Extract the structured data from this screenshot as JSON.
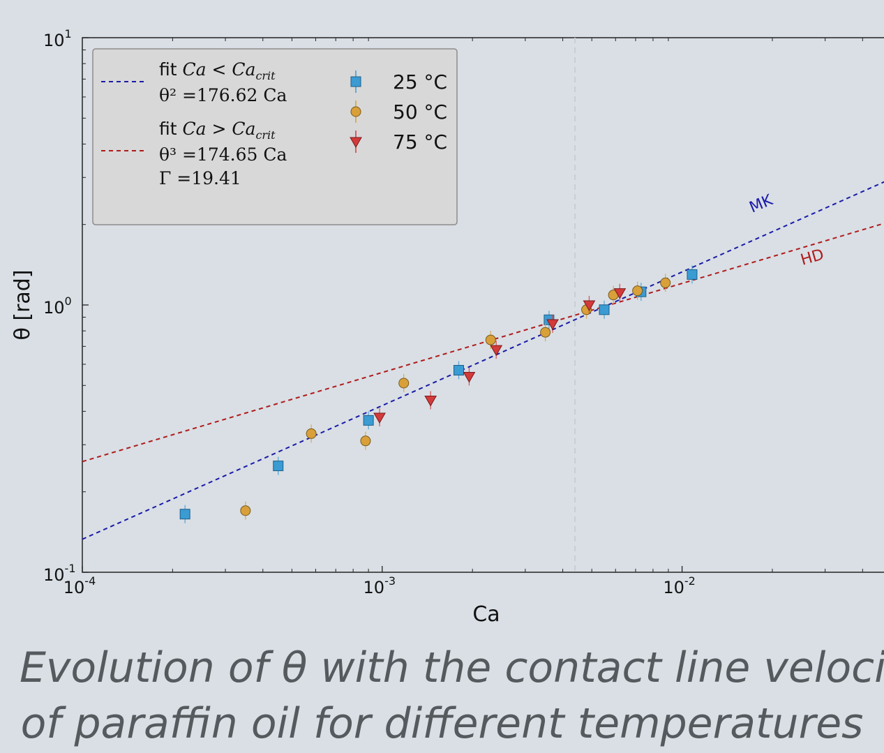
{
  "chart_data": {
    "type": "scatter",
    "xscale": "log",
    "yscale": "log",
    "xlim": [
      0.0001,
      0.05
    ],
    "ylim": [
      0.1,
      10
    ],
    "xlabel": "Ca",
    "ylabel": "θ [rad]",
    "x_ticks": [
      {
        "value": 0.0001,
        "label": "10",
        "exp": "-4"
      },
      {
        "value": 0.001,
        "label": "10",
        "exp": "-3"
      },
      {
        "value": 0.01,
        "label": "10",
        "exp": "-2"
      }
    ],
    "y_ticks": [
      {
        "value": 0.1,
        "label": "10",
        "exp": "-1"
      },
      {
        "value": 1,
        "label": "10",
        "exp": "0"
      },
      {
        "value": 10,
        "label": "10",
        "exp": "1"
      }
    ],
    "critical_ca": 0.005,
    "series": [
      {
        "name": "25 °C",
        "marker": "square",
        "color": "#3b9bd3",
        "points": [
          [
            0.00022,
            0.165
          ],
          [
            0.00045,
            0.25
          ],
          [
            0.0009,
            0.37
          ],
          [
            0.0018,
            0.57
          ],
          [
            0.0036,
            0.88
          ],
          [
            0.0055,
            0.96
          ],
          [
            0.0073,
            1.12
          ],
          [
            0.0108,
            1.3
          ]
        ]
      },
      {
        "name": "50 °C",
        "marker": "circle",
        "color": "#d9a03a",
        "points": [
          [
            0.00035,
            0.17
          ],
          [
            0.00058,
            0.33
          ],
          [
            0.00088,
            0.31
          ],
          [
            0.00118,
            0.51
          ],
          [
            0.0023,
            0.74
          ],
          [
            0.0035,
            0.79
          ],
          [
            0.0048,
            0.96
          ],
          [
            0.0059,
            1.09
          ],
          [
            0.0071,
            1.13
          ],
          [
            0.0088,
            1.21
          ]
        ]
      },
      {
        "name": "75 °C",
        "marker": "triangle-down",
        "color": "#d33a3a",
        "points": [
          [
            0.00098,
            0.38
          ],
          [
            0.00145,
            0.44
          ],
          [
            0.00195,
            0.54
          ],
          [
            0.0024,
            0.68
          ],
          [
            0.0037,
            0.85
          ],
          [
            0.0049,
            1.0
          ],
          [
            0.0062,
            1.11
          ]
        ]
      }
    ],
    "fits": [
      {
        "name": "MK",
        "color": "#1a1aa8",
        "legend_lines": [
          "fit Ca < Ca_crit",
          "θ² = 176.62 Ca"
        ],
        "exponent": 2,
        "coefficient": 176.62
      },
      {
        "name": "HD",
        "color": "#b01a1a",
        "legend_lines": [
          "fit Ca > Ca_crit",
          "θ³ = 174.65 Ca",
          "Γ = 19.41"
        ],
        "exponent": 3,
        "coefficient": 174.65
      }
    ],
    "legend_position": "top-left"
  },
  "legend": {
    "fit1_line1": "fit",
    "fit1_math": "Ca < Ca",
    "fit1_sub": "crit",
    "fit1_eq": "θ² =176.62 Ca",
    "fit2_line1": "fit",
    "fit2_math": "Ca > Ca",
    "fit2_sub": "crit",
    "fit2_eq": "θ³ =174.65 Ca",
    "fit2_gamma": "Γ =19.41",
    "s1": "25 °C",
    "s2": "50 °C",
    "s3": "75 °C"
  },
  "annotations": {
    "mk": "MK",
    "hd": "HD"
  },
  "caption": {
    "line1": "Evolution of θ with the contact line velocity",
    "line2": "of paraffin oil for different temperatures"
  }
}
